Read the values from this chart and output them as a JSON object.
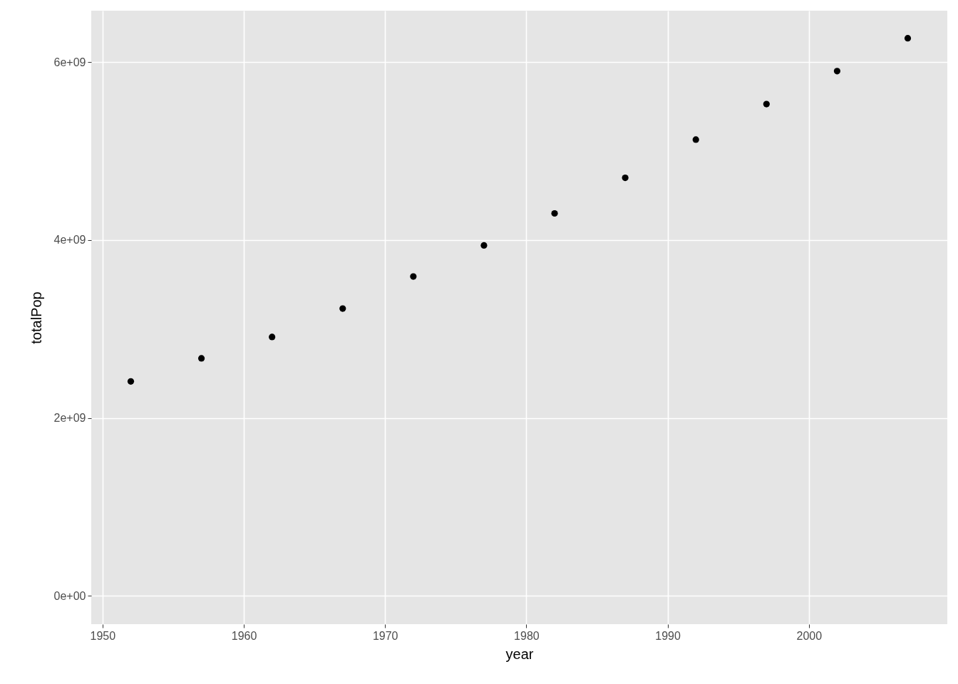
{
  "chart_data": {
    "type": "scatter",
    "xlabel": "year",
    "ylabel": "totalPop",
    "x": [
      1952,
      1957,
      1962,
      1967,
      1972,
      1977,
      1982,
      1987,
      1992,
      1997,
      2002,
      2007
    ],
    "series": [
      {
        "color": "#000000",
        "values": [
          2410000000,
          2670000000,
          2910000000,
          3230000000,
          3590000000,
          3940000000,
          4300000000,
          4700000000,
          5130000000,
          5530000000,
          5900000000,
          6270000000
        ]
      }
    ],
    "xlim": [
      1949.2,
      2009.8
    ],
    "xticks": [
      1950,
      1960,
      1970,
      1980,
      1990,
      2000
    ],
    "ylim": [
      -320000000,
      6580000000
    ],
    "yticks": [
      {
        "value": 0,
        "label": "0e+00"
      },
      {
        "value": 2000000000,
        "label": "2e+09"
      },
      {
        "value": 4000000000,
        "label": "4e+09"
      },
      {
        "value": 6000000000,
        "label": "6e+09"
      }
    ],
    "grid": true,
    "marker": "circle"
  }
}
